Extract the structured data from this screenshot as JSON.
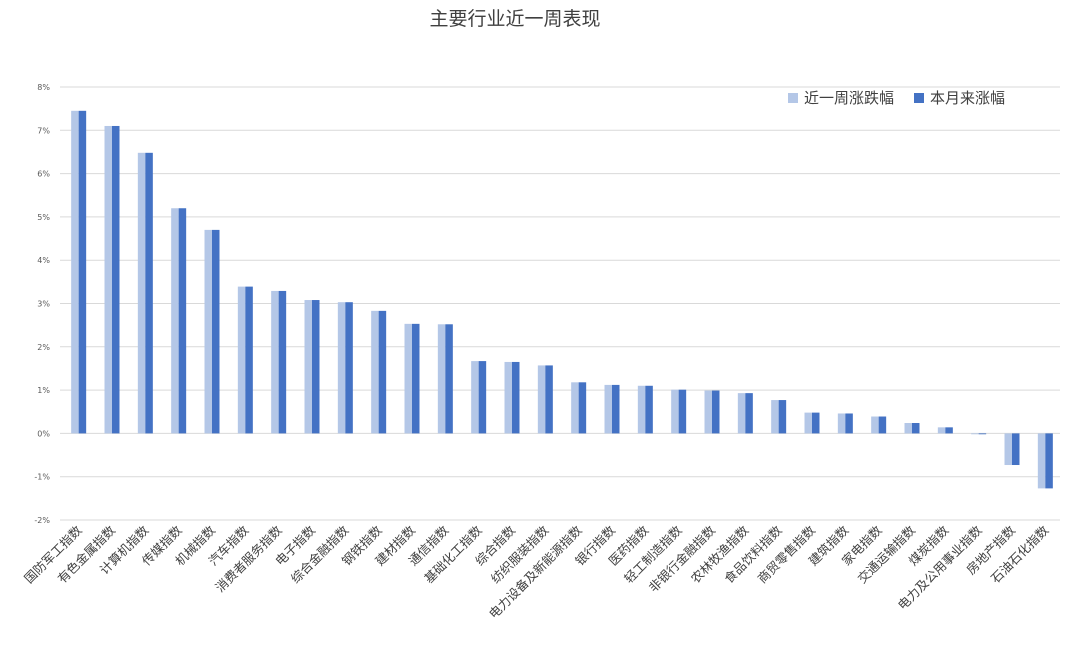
{
  "chart_data": {
    "type": "bar",
    "title": "主要行业近一周表现",
    "xlabel": "",
    "ylabel": "",
    "ylim": [
      -2,
      8
    ],
    "yticks": [
      "-2%",
      "-1%",
      "0%",
      "1%",
      "2%",
      "3%",
      "4%",
      "5%",
      "6%",
      "7%",
      "8%"
    ],
    "grid": true,
    "legend_position": "top-right",
    "categories": [
      "国防军工指数",
      "有色金属指数",
      "计算机指数",
      "传媒指数",
      "机械指数",
      "汽车指数",
      "消费者服务指数",
      "电子指数",
      "综合金融指数",
      "钢铁指数",
      "建材指数",
      "通信指数",
      "基础化工指数",
      "综合指数",
      "纺织服装指数",
      "电力设备及新能源指数",
      "银行指数",
      "医药指数",
      "轻工制造指数",
      "非银行金融指数",
      "农林牧渔指数",
      "食品饮料指数",
      "商贸零售指数",
      "建筑指数",
      "家电指数",
      "交通运输指数",
      "煤炭指数",
      "电力及公用事业指数",
      "房地产指数",
      "石油石化指数"
    ],
    "series": [
      {
        "name": "近一周涨跌幅",
        "color": "#b4c7e7",
        "values": [
          7.45,
          7.1,
          6.48,
          5.2,
          4.7,
          3.39,
          3.29,
          3.08,
          3.03,
          2.83,
          2.53,
          2.52,
          1.67,
          1.65,
          1.57,
          1.18,
          1.12,
          1.1,
          1.01,
          0.99,
          0.93,
          0.77,
          0.48,
          0.46,
          0.39,
          0.24,
          0.14,
          -0.02,
          -0.73,
          -1.27
        ]
      },
      {
        "name": "本月来涨幅",
        "color": "#4472c4",
        "values": [
          7.45,
          7.1,
          6.48,
          5.2,
          4.7,
          3.39,
          3.29,
          3.08,
          3.03,
          2.83,
          2.53,
          2.52,
          1.67,
          1.65,
          1.57,
          1.18,
          1.12,
          1.1,
          1.01,
          0.99,
          0.93,
          0.77,
          0.48,
          0.46,
          0.39,
          0.24,
          0.14,
          -0.02,
          -0.73,
          -1.27
        ]
      }
    ]
  }
}
